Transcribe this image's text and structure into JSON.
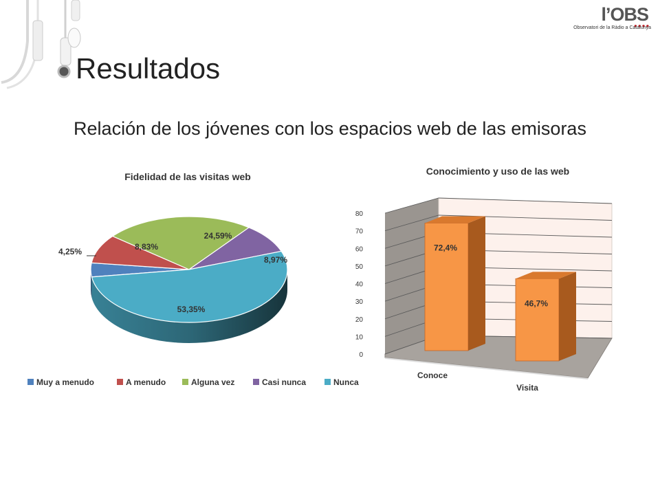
{
  "slide": {
    "title": "Resultados",
    "subtitle": "Relación de los jóvenes con los espacios web de las emisoras"
  },
  "logo": {
    "wordmark": "l’OBS",
    "tagline": "Observatori de la Ràdio a Catalunya",
    "accent_color": "#c0272d"
  },
  "chart_data": [
    {
      "type": "pie",
      "title": "Fidelidad de las visitas web",
      "style": "3d",
      "legend_position": "bottom",
      "slices": [
        {
          "name": "Muy a menudo",
          "value": 4.25,
          "label": "4,25%",
          "color": "#4f81bd"
        },
        {
          "name": "A menudo",
          "value": 8.83,
          "label": "8,83%",
          "color": "#c0504d"
        },
        {
          "name": "Alguna vez",
          "value": 24.59,
          "label": "24,59%",
          "color": "#9bbb59"
        },
        {
          "name": "Casi nunca",
          "value": 8.97,
          "label": "8,97%",
          "color": "#8064a2"
        },
        {
          "name": "Nunca",
          "value": 53.35,
          "label": "53,35%",
          "color": "#4bacc6"
        }
      ]
    },
    {
      "type": "bar",
      "title": "Conocimiento y uso de las web",
      "style": "3d",
      "categories": [
        "Conoce",
        "Visita"
      ],
      "values": [
        72.4,
        46.7
      ],
      "data_labels": [
        "72,4%",
        "46,7%"
      ],
      "ylim": [
        0,
        80
      ],
      "yticks": [
        "0",
        "10",
        "20",
        "30",
        "40",
        "50",
        "60",
        "70",
        "80"
      ],
      "grid": true,
      "bar_color": "#f79646",
      "bar_side_color": "#a85a1e",
      "bar_top_color": "#d9792e",
      "wall_color": "#fdf1ec"
    }
  ]
}
